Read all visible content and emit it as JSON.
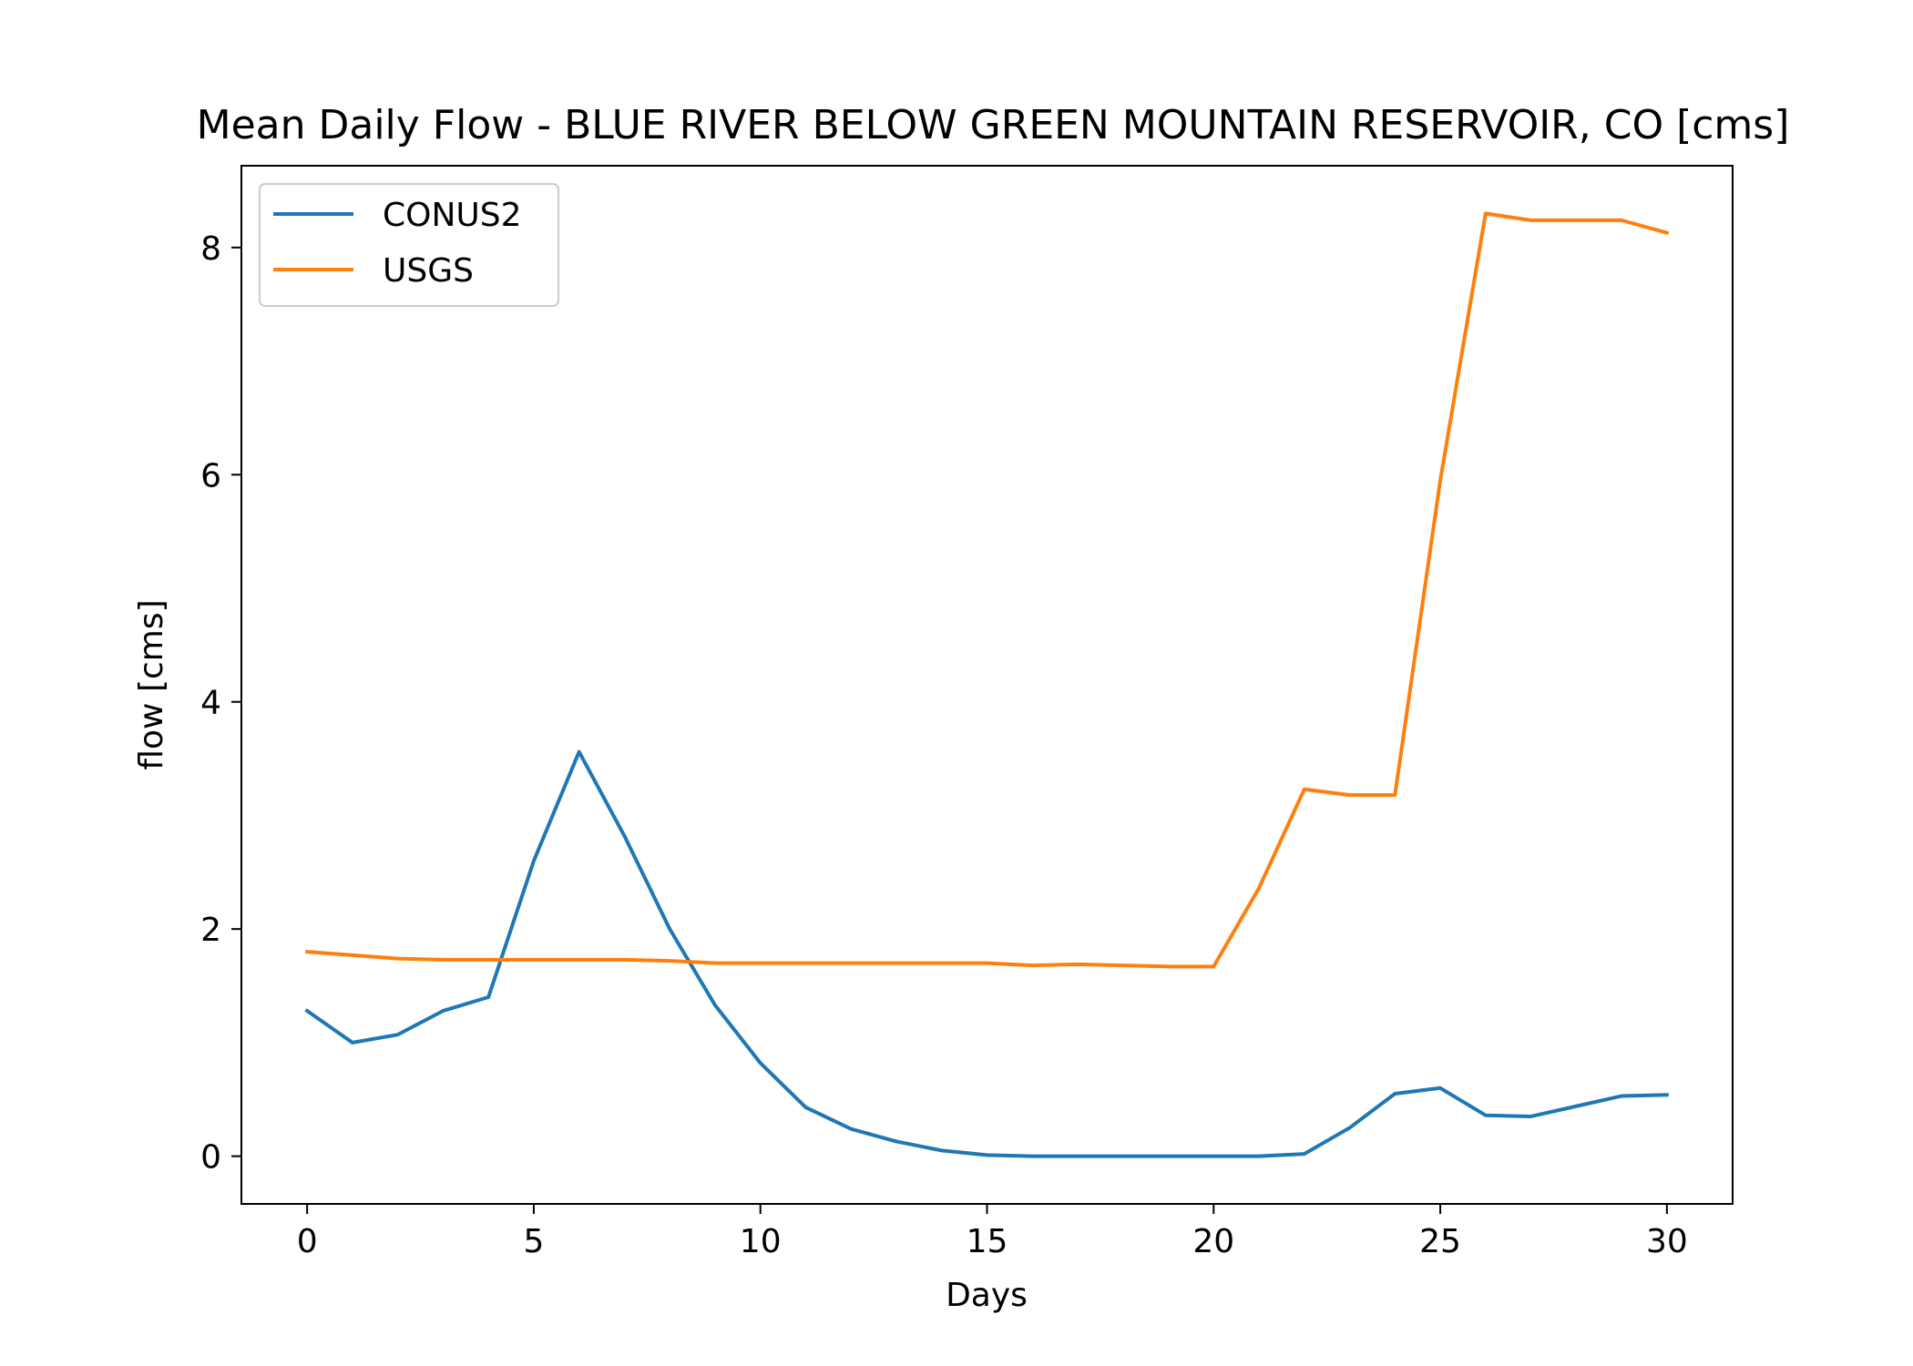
{
  "chart_data": {
    "type": "line",
    "title": "Mean Daily Flow - BLUE RIVER BELOW GREEN MOUNTAIN RESERVOIR, CO [cms]",
    "xlabel": "Days",
    "ylabel": "flow [cms]",
    "xlim": [
      -1.45,
      31.45
    ],
    "ylim": [
      -0.42,
      8.72
    ],
    "xticks": [
      0,
      5,
      10,
      15,
      20,
      25,
      30
    ],
    "yticks": [
      0,
      2,
      4,
      6,
      8
    ],
    "grid": false,
    "legend": "top-left",
    "x": [
      0,
      1,
      2,
      3,
      4,
      5,
      6,
      7,
      8,
      9,
      10,
      11,
      12,
      13,
      14,
      15,
      16,
      17,
      18,
      19,
      20,
      21,
      22,
      23,
      24,
      25,
      26,
      27,
      28,
      29,
      30
    ],
    "series": [
      {
        "name": "CONUS2",
        "color": "#1f77b4",
        "values": [
          1.28,
          1.0,
          1.07,
          1.28,
          1.4,
          2.6,
          3.56,
          2.82,
          2.0,
          1.33,
          0.82,
          0.43,
          0.24,
          0.13,
          0.05,
          0.01,
          0.0,
          0.0,
          0.0,
          0.0,
          0.0,
          0.0,
          0.02,
          0.25,
          0.55,
          0.6,
          0.36,
          0.35,
          0.44,
          0.53,
          0.54
        ]
      },
      {
        "name": "USGS",
        "color": "#ff7f0e",
        "values": [
          1.8,
          1.77,
          1.74,
          1.73,
          1.73,
          1.73,
          1.73,
          1.73,
          1.72,
          1.7,
          1.7,
          1.7,
          1.7,
          1.7,
          1.7,
          1.7,
          1.68,
          1.69,
          1.68,
          1.67,
          1.67,
          2.36,
          3.23,
          3.18,
          3.18,
          5.95,
          8.3,
          8.24,
          8.24,
          8.24,
          8.13
        ]
      }
    ]
  }
}
